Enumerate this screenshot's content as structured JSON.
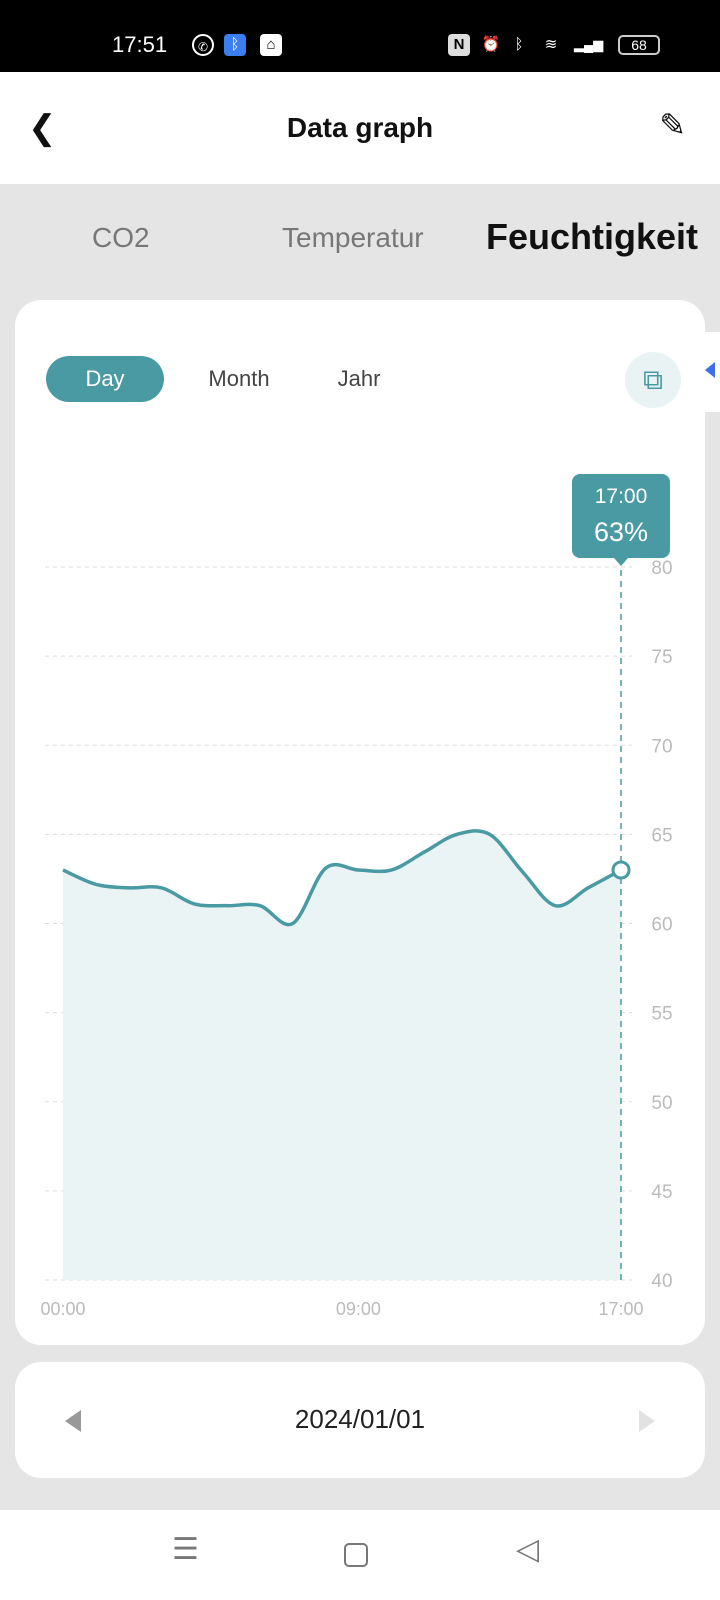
{
  "status_bar": {
    "time": "17:51",
    "battery": "68"
  },
  "header": {
    "title": "Data graph"
  },
  "tabs": [
    {
      "label": "CO2"
    },
    {
      "label": "Temperatur"
    },
    {
      "label": "Feuchtigkeit",
      "active": true
    }
  ],
  "ranges": [
    {
      "label": "Day",
      "active": true
    },
    {
      "label": "Month"
    },
    {
      "label": "Jahr"
    }
  ],
  "tooltip": {
    "time": "17:00",
    "value": "63%"
  },
  "colors": {
    "accent": "#4a9aa3",
    "fill": "#ebf4f5"
  },
  "chart_data": {
    "type": "area",
    "x": [
      "00:00",
      "01:00",
      "02:00",
      "03:00",
      "04:00",
      "05:00",
      "06:00",
      "07:00",
      "08:00",
      "09:00",
      "10:00",
      "11:00",
      "12:00",
      "13:00",
      "14:00",
      "15:00",
      "16:00",
      "17:00"
    ],
    "values": [
      63,
      62.2,
      62,
      62,
      61.1,
      61,
      61,
      60,
      63.1,
      63,
      63,
      64,
      65,
      65,
      62.9,
      61,
      62,
      63
    ],
    "ylim": [
      40,
      80
    ],
    "yticks": [
      "80",
      "75",
      "70",
      "65",
      "60",
      "55",
      "50",
      "45",
      "40"
    ],
    "xticks": [
      "00:00",
      "09:00",
      "17:00"
    ],
    "grid": true,
    "y_axis_side": "right",
    "unit": "%"
  },
  "date_nav": {
    "date": "2024/01/01"
  }
}
